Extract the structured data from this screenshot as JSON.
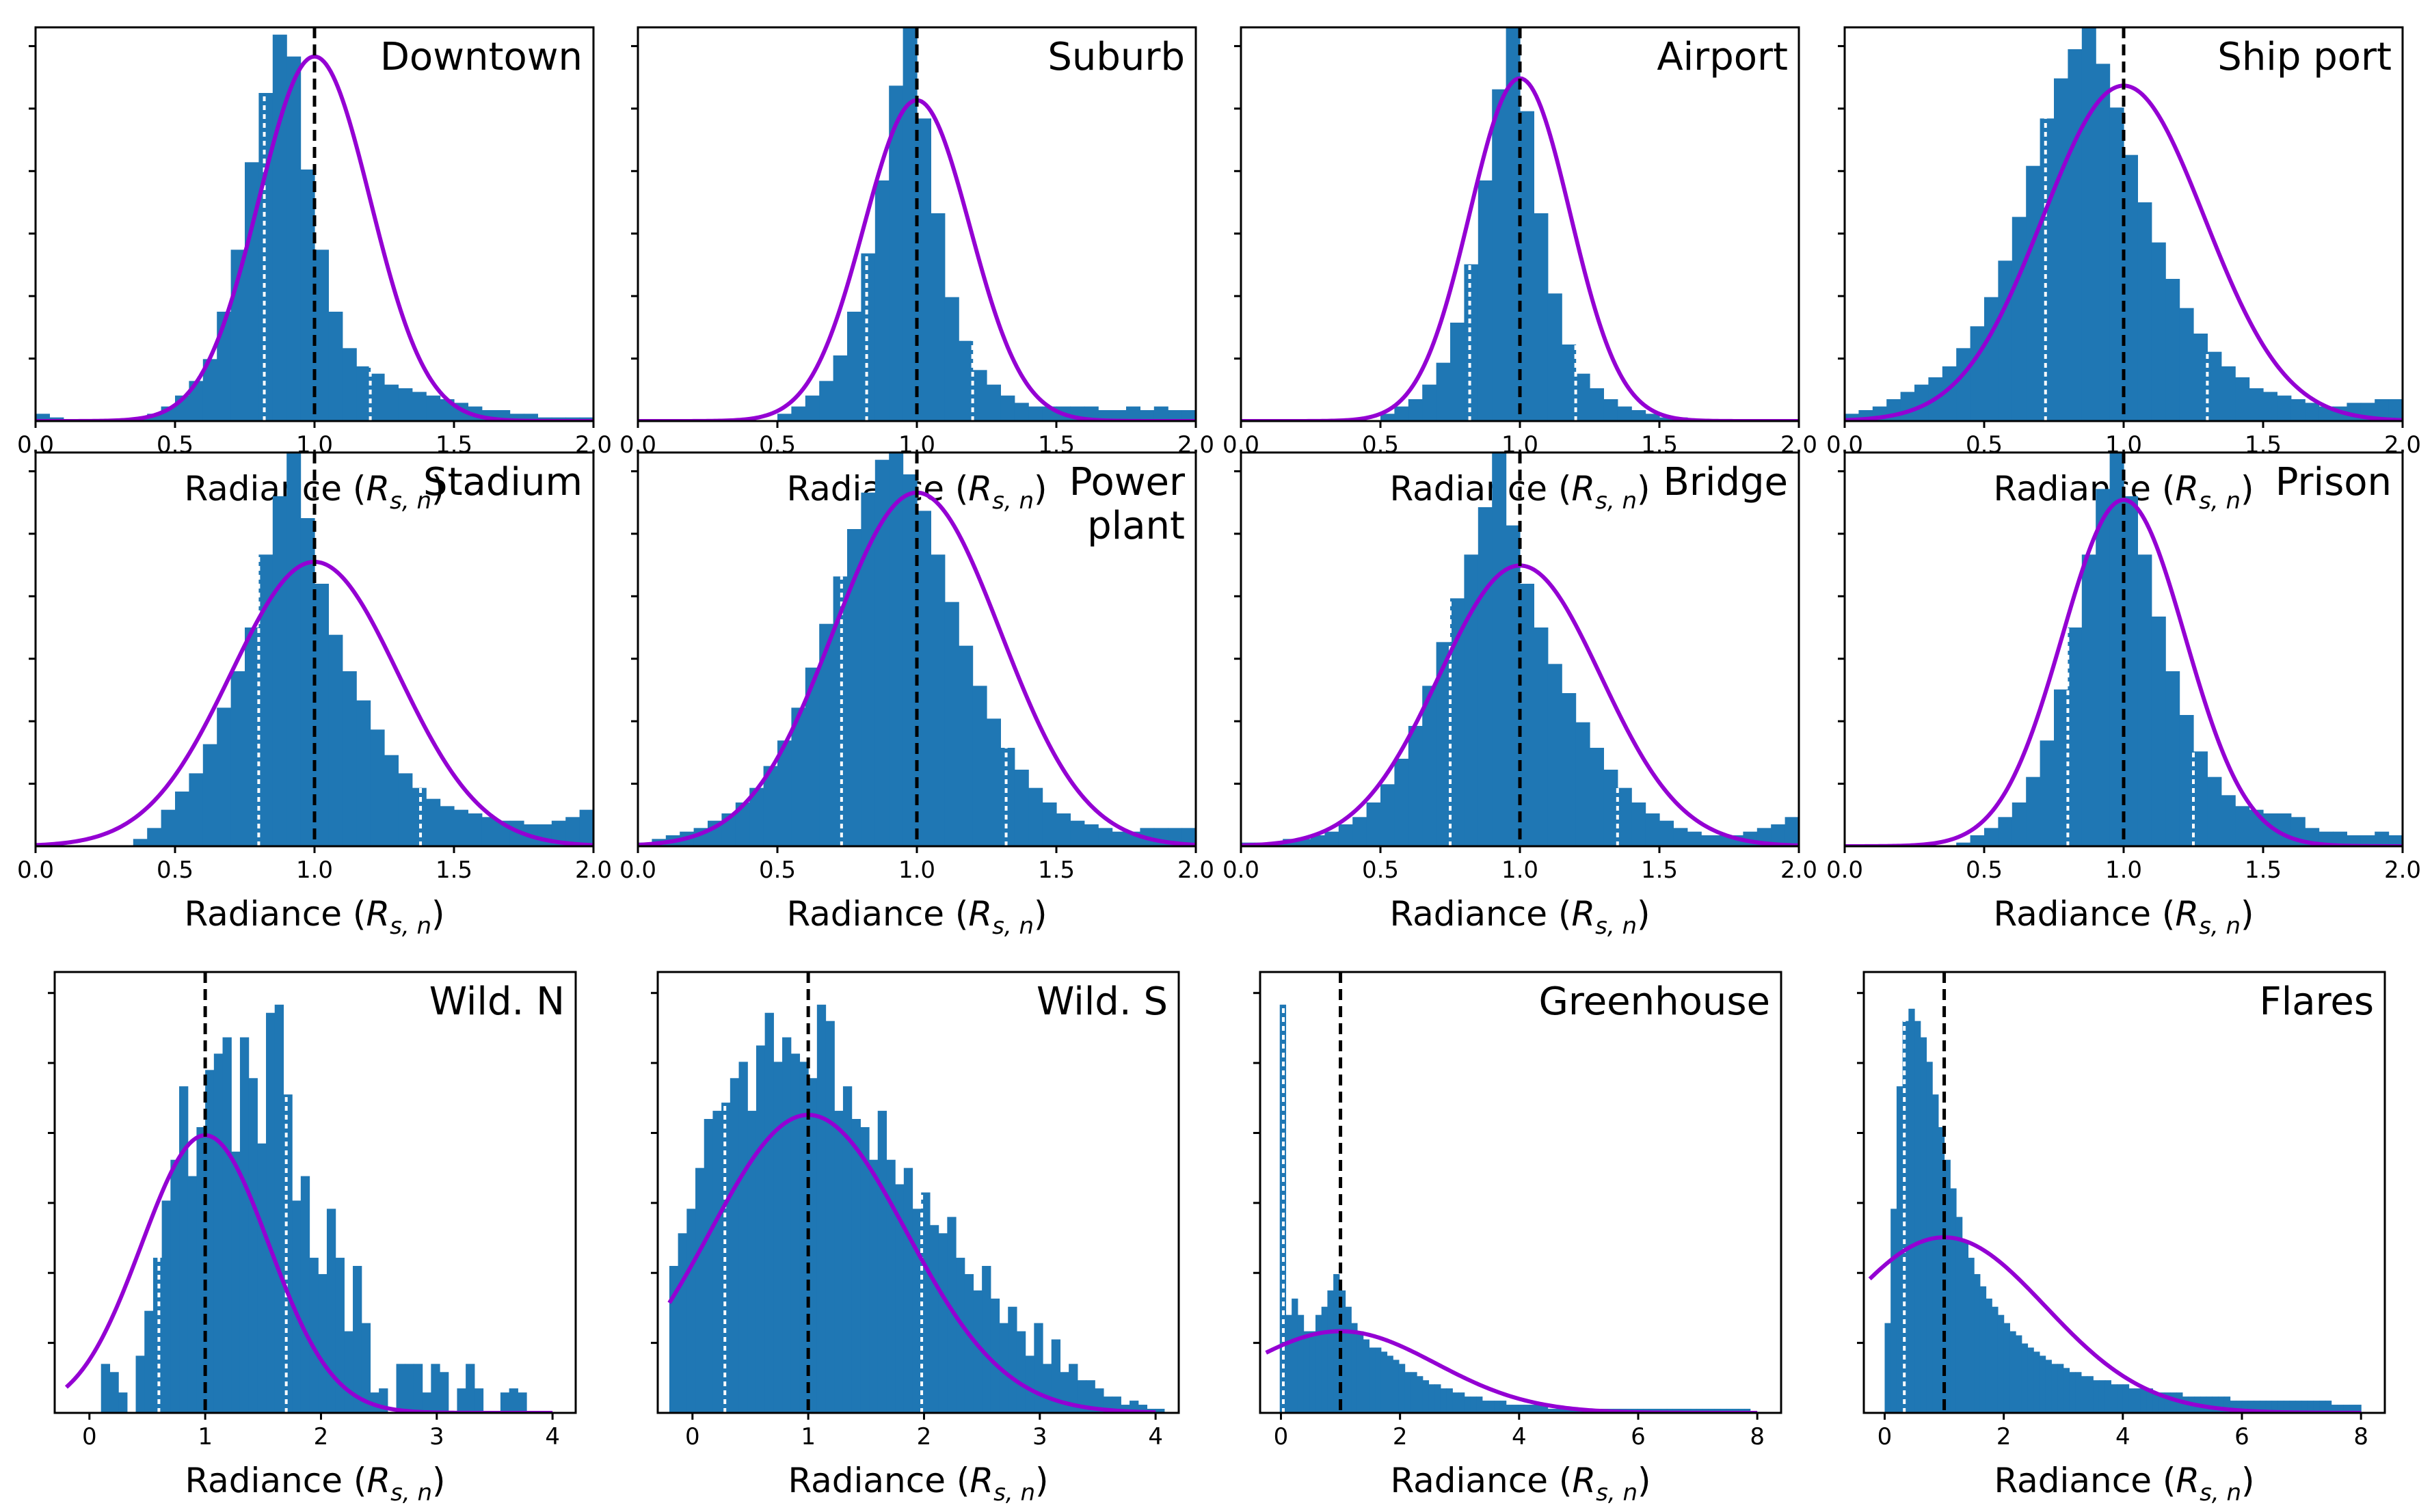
{
  "figure": {
    "x_axis_label": "Radiance (Rₛ,ₙ)",
    "x_axis_label_parts": {
      "main": "Radiance (",
      "symbol": "R",
      "subscript": "s, n",
      "close": ")"
    }
  },
  "colors": {
    "bars": "#1f77b4",
    "fit_curve": "#9400D3",
    "mean_line": "#000000",
    "percentile_lines": "#ffffff"
  },
  "chart_data": [
    {
      "type": "bar",
      "title": "Downtown",
      "xlim": [
        0,
        2
      ],
      "xticks": [
        "0.0",
        "0.5",
        "1.0",
        "1.5",
        "2.0"
      ],
      "show_x_tick_labels": true,
      "ylim": [
        0,
        1.08
      ],
      "bin_start": 0.0,
      "bin_width": 0.05,
      "values": [
        0.02,
        0.01,
        0.0,
        0.0,
        0.0,
        0.0,
        0.0,
        0.01,
        0.02,
        0.04,
        0.07,
        0.11,
        0.17,
        0.3,
        0.47,
        0.71,
        0.9,
        1.06,
        1.0,
        0.69,
        0.47,
        0.3,
        0.2,
        0.15,
        0.13,
        0.1,
        0.09,
        0.08,
        0.07,
        0.06,
        0.05,
        0.04,
        0.03,
        0.03,
        0.02,
        0.02,
        0.01,
        0.01,
        0.01,
        0.01
      ],
      "fit": {
        "mean": 1.0,
        "sigma": 0.2,
        "peak": 1.0
      },
      "mean_marker": 1.0,
      "percentile_markers": [
        0.82,
        1.2
      ]
    },
    {
      "type": "bar",
      "title": "Suburb",
      "xlim": [
        0,
        2
      ],
      "xticks": [
        "0.0",
        "0.5",
        "1.0",
        "1.5",
        "2.0"
      ],
      "show_x_tick_labels": true,
      "ylim": [
        0,
        1.08
      ],
      "bin_start": 0.0,
      "bin_width": 0.05,
      "values": [
        0.0,
        0.0,
        0.0,
        0.0,
        0.0,
        0.0,
        0.0,
        0.0,
        0.0,
        0.0,
        0.02,
        0.04,
        0.07,
        0.11,
        0.18,
        0.3,
        0.46,
        0.66,
        0.92,
        1.08,
        0.83,
        0.57,
        0.34,
        0.22,
        0.14,
        0.1,
        0.07,
        0.05,
        0.04,
        0.04,
        0.04,
        0.04,
        0.04,
        0.03,
        0.03,
        0.04,
        0.03,
        0.04,
        0.03,
        0.03
      ],
      "fit": {
        "mean": 1.0,
        "sigma": 0.19,
        "peak": 0.88
      },
      "mean_marker": 1.0,
      "percentile_markers": [
        0.82,
        1.2
      ]
    },
    {
      "type": "bar",
      "title": "Airport",
      "xlim": [
        0,
        2
      ],
      "xticks": [
        "0.0",
        "0.5",
        "1.0",
        "1.5",
        "2.0"
      ],
      "show_x_tick_labels": true,
      "ylim": [
        0,
        1.08
      ],
      "bin_start": 0.0,
      "bin_width": 0.05,
      "values": [
        0.0,
        0.0,
        0.0,
        0.0,
        0.0,
        0.0,
        0.0,
        0.0,
        0.0,
        0.0,
        0.02,
        0.04,
        0.06,
        0.1,
        0.16,
        0.27,
        0.43,
        0.66,
        0.91,
        1.08,
        0.85,
        0.57,
        0.35,
        0.21,
        0.13,
        0.09,
        0.06,
        0.04,
        0.03,
        0.02,
        0.01,
        0.01,
        0.0,
        0.0,
        0.0,
        0.0,
        0.0,
        0.0,
        0.0,
        0.0
      ],
      "fit": {
        "mean": 1.0,
        "sigma": 0.18,
        "peak": 0.94
      },
      "mean_marker": 1.0,
      "percentile_markers": [
        0.82,
        1.2
      ]
    },
    {
      "type": "bar",
      "title": "Ship port",
      "xlim": [
        0,
        2
      ],
      "xticks": [
        "0.0",
        "0.5",
        "1.0",
        "1.5",
        "2.0"
      ],
      "show_x_tick_labels": true,
      "ylim": [
        0,
        1.08
      ],
      "bin_start": 0.0,
      "bin_width": 0.05,
      "values": [
        0.02,
        0.03,
        0.04,
        0.06,
        0.08,
        0.1,
        0.12,
        0.15,
        0.2,
        0.26,
        0.34,
        0.44,
        0.56,
        0.7,
        0.83,
        0.94,
        1.02,
        1.08,
        0.98,
        0.86,
        0.73,
        0.6,
        0.49,
        0.39,
        0.31,
        0.24,
        0.19,
        0.15,
        0.12,
        0.09,
        0.08,
        0.07,
        0.06,
        0.05,
        0.04,
        0.04,
        0.05,
        0.05,
        0.06,
        0.06
      ],
      "fit": {
        "mean": 1.0,
        "sigma": 0.29,
        "peak": 0.92
      },
      "mean_marker": 1.0,
      "percentile_markers": [
        0.72,
        1.3
      ]
    },
    {
      "type": "bar",
      "title": "Stadium",
      "xlim": [
        0,
        2
      ],
      "xticks": [
        "0.0",
        "0.5",
        "1.0",
        "1.5",
        "2.0"
      ],
      "show_x_tick_labels": true,
      "ylim": [
        0,
        1.08
      ],
      "bin_start": 0.0,
      "bin_width": 0.05,
      "values": [
        0.0,
        0.0,
        0.0,
        0.0,
        0.0,
        0.0,
        0.0,
        0.02,
        0.05,
        0.1,
        0.15,
        0.2,
        0.28,
        0.38,
        0.48,
        0.6,
        0.8,
        0.96,
        1.08,
        0.9,
        0.72,
        0.58,
        0.48,
        0.4,
        0.32,
        0.25,
        0.2,
        0.16,
        0.13,
        0.11,
        0.1,
        0.09,
        0.08,
        0.07,
        0.07,
        0.06,
        0.06,
        0.07,
        0.08,
        0.1
      ],
      "fit": {
        "mean": 1.0,
        "sigma": 0.3,
        "peak": 0.78
      },
      "mean_marker": 1.0,
      "percentile_markers": [
        0.8,
        1.38
      ]
    },
    {
      "type": "bar",
      "title": "Power plant",
      "xlim": [
        0,
        2
      ],
      "xticks": [
        "0.0",
        "0.5",
        "1.0",
        "1.5",
        "2.0"
      ],
      "show_x_tick_labels": true,
      "ylim": [
        0,
        1.08
      ],
      "bin_start": 0.0,
      "bin_width": 0.05,
      "values": [
        0.01,
        0.02,
        0.03,
        0.04,
        0.05,
        0.07,
        0.09,
        0.12,
        0.16,
        0.22,
        0.29,
        0.38,
        0.49,
        0.61,
        0.74,
        0.87,
        0.97,
        1.06,
        1.08,
        1.02,
        0.92,
        0.8,
        0.67,
        0.55,
        0.44,
        0.35,
        0.27,
        0.21,
        0.16,
        0.12,
        0.09,
        0.07,
        0.06,
        0.05,
        0.04,
        0.04,
        0.05,
        0.05,
        0.05,
        0.05
      ],
      "fit": {
        "mean": 1.0,
        "sigma": 0.3,
        "peak": 0.97
      },
      "mean_marker": 1.0,
      "percentile_markers": [
        0.73,
        1.32
      ]
    },
    {
      "type": "bar",
      "title": "Bridge",
      "xlim": [
        0,
        2
      ],
      "xticks": [
        "0.0",
        "0.5",
        "1.0",
        "1.5",
        "2.0"
      ],
      "show_x_tick_labels": true,
      "ylim": [
        0,
        1.08
      ],
      "bin_start": 0.0,
      "bin_width": 0.05,
      "values": [
        0.01,
        0.01,
        0.01,
        0.02,
        0.02,
        0.03,
        0.04,
        0.06,
        0.08,
        0.12,
        0.17,
        0.24,
        0.33,
        0.44,
        0.56,
        0.68,
        0.8,
        0.93,
        1.08,
        0.88,
        0.72,
        0.6,
        0.5,
        0.42,
        0.34,
        0.27,
        0.21,
        0.16,
        0.12,
        0.09,
        0.07,
        0.05,
        0.04,
        0.03,
        0.03,
        0.03,
        0.04,
        0.05,
        0.06,
        0.08
      ],
      "fit": {
        "mean": 1.0,
        "sigma": 0.29,
        "peak": 0.77
      },
      "mean_marker": 1.0,
      "percentile_markers": [
        0.75,
        1.35
      ]
    },
    {
      "type": "bar",
      "title": "Prison",
      "xlim": [
        0,
        2
      ],
      "xticks": [
        "0.0",
        "0.5",
        "1.0",
        "1.5",
        "2.0"
      ],
      "show_x_tick_labels": true,
      "ylim": [
        0,
        1.08
      ],
      "bin_start": 0.0,
      "bin_width": 0.05,
      "values": [
        0.0,
        0.0,
        0.0,
        0.0,
        0.0,
        0.0,
        0.0,
        0.0,
        0.01,
        0.03,
        0.05,
        0.08,
        0.12,
        0.19,
        0.29,
        0.43,
        0.6,
        0.8,
        0.98,
        1.08,
        0.96,
        0.8,
        0.63,
        0.48,
        0.36,
        0.26,
        0.19,
        0.14,
        0.11,
        0.1,
        0.09,
        0.09,
        0.08,
        0.05,
        0.04,
        0.04,
        0.03,
        0.03,
        0.04,
        0.03
      ],
      "fit": {
        "mean": 1.0,
        "sigma": 0.22,
        "peak": 0.95
      },
      "mean_marker": 1.0,
      "percentile_markers": [
        0.8,
        1.25
      ]
    },
    {
      "type": "bar",
      "title": "Wild. N",
      "xlim": [
        -0.3,
        4.2
      ],
      "xticks": [
        "0",
        "1",
        "2",
        "3",
        "4"
      ],
      "xtick_values": [
        0,
        1,
        2,
        3,
        4
      ],
      "show_x_tick_labels": true,
      "ylim": [
        0,
        1.08
      ],
      "bin_start": 0.1,
      "bin_width": 0.075,
      "values": [
        0.12,
        0.1,
        0.05,
        0.0,
        0.14,
        0.25,
        0.38,
        0.52,
        0.62,
        0.8,
        0.58,
        0.7,
        0.84,
        0.88,
        0.92,
        0.64,
        0.92,
        0.82,
        0.66,
        0.98,
        1.0,
        0.78,
        0.52,
        0.58,
        0.38,
        0.34,
        0.5,
        0.38,
        0.2,
        0.36,
        0.22,
        0.05,
        0.06,
        0.0,
        0.12,
        0.12,
        0.12,
        0.05,
        0.12,
        0.1,
        0.0,
        0.06,
        0.12,
        0.06,
        0.0,
        0.0,
        0.05,
        0.06,
        0.05,
        0.0,
        0.0,
        0.0,
        0.0,
        0.0,
        0.0,
        0.05,
        0.12,
        0.06,
        0.0,
        0.0,
        0.0,
        0.0,
        0.0,
        0.06,
        0.06,
        0.0,
        0.06,
        0.0,
        0.0,
        0.06
      ],
      "fit": {
        "mean": 1.0,
        "sigma": 0.55,
        "peak": 0.68
      },
      "fit_range": [
        -0.2,
        4.0
      ],
      "mean_marker": 1.0,
      "percentile_markers": [
        0.6,
        1.7
      ]
    },
    {
      "type": "bar",
      "title": "Wild. S",
      "xlim": [
        -0.3,
        4.2
      ],
      "xticks": [
        "0",
        "1",
        "2",
        "3",
        "4"
      ],
      "xtick_values": [
        0,
        1,
        2,
        3,
        4
      ],
      "show_x_tick_labels": true,
      "ylim": [
        0,
        1.08
      ],
      "bin_start": -0.2,
      "bin_width": 0.075,
      "values": [
        0.36,
        0.44,
        0.5,
        0.6,
        0.72,
        0.74,
        0.76,
        0.82,
        0.86,
        0.74,
        0.9,
        0.98,
        0.86,
        0.92,
        0.88,
        0.86,
        0.82,
        1.0,
        0.96,
        0.74,
        0.8,
        0.72,
        0.7,
        0.62,
        0.74,
        0.62,
        0.56,
        0.6,
        0.5,
        0.54,
        0.46,
        0.44,
        0.48,
        0.38,
        0.34,
        0.3,
        0.36,
        0.28,
        0.22,
        0.26,
        0.2,
        0.14,
        0.22,
        0.12,
        0.18,
        0.1,
        0.12,
        0.08,
        0.08,
        0.06,
        0.04,
        0.04,
        0.02,
        0.03,
        0.02,
        0.01,
        0.01,
        0.0
      ],
      "fit": {
        "mean": 1.0,
        "sigma": 0.85,
        "peak": 0.73
      },
      "fit_range": [
        -0.2,
        4.0
      ],
      "mean_marker": 1.0,
      "percentile_markers": [
        0.28,
        1.98
      ]
    },
    {
      "type": "bar",
      "title": "Greenhouse",
      "xlim": [
        -0.35,
        8.4
      ],
      "xticks": [
        "0",
        "2",
        "4",
        "6",
        "8"
      ],
      "xtick_values": [
        0,
        2,
        4,
        6,
        8
      ],
      "show_x_tick_labels": true,
      "ylim": [
        0,
        1.08
      ],
      "bin_start": -0.02,
      "bin_width": 0.1,
      "values": [
        1.0,
        0.24,
        0.28,
        0.24,
        0.2,
        0.2,
        0.24,
        0.26,
        0.3,
        0.34,
        0.3,
        0.26,
        0.22,
        0.2,
        0.18,
        0.16,
        0.16,
        0.15,
        0.14,
        0.13,
        0.12,
        0.1,
        0.1,
        0.09,
        0.08,
        0.07,
        0.07,
        0.06,
        0.06,
        0.05,
        0.05,
        0.04,
        0.04,
        0.04,
        0.03,
        0.03,
        0.03,
        0.03,
        0.02,
        0.02,
        0.02,
        0.02,
        0.02,
        0.02,
        0.02,
        0.01,
        0.01,
        0.01,
        0.01,
        0.01,
        0.01,
        0.01,
        0.01,
        0.01,
        0.01,
        0.01,
        0.01,
        0.01,
        0.01,
        0.01,
        0.01,
        0.01,
        0.01,
        0.01,
        0.01,
        0.01,
        0.01,
        0.01,
        0.01,
        0.01,
        0.01,
        0.01,
        0.01,
        0.01,
        0.01,
        0.01,
        0.01,
        0.01,
        0.01,
        0.0
      ],
      "fit": {
        "mean": 1.0,
        "sigma": 1.6,
        "peak": 0.2
      },
      "fit_range": [
        -0.25,
        8.0
      ],
      "mean_marker": 1.0,
      "percentile_markers": [
        0.04
      ]
    },
    {
      "type": "bar",
      "title": "Flares",
      "xlim": [
        -0.35,
        8.4
      ],
      "xticks": [
        "0",
        "2",
        "4",
        "6",
        "8"
      ],
      "xtick_values": [
        0,
        2,
        4,
        6,
        8
      ],
      "show_x_tick_labels": true,
      "ylim": [
        0,
        1.08
      ],
      "bin_start": 0.0,
      "bin_width": 0.1,
      "values": [
        0.22,
        0.5,
        0.8,
        0.96,
        0.99,
        0.96,
        0.92,
        0.86,
        0.78,
        0.7,
        0.62,
        0.55,
        0.48,
        0.42,
        0.38,
        0.34,
        0.31,
        0.28,
        0.26,
        0.24,
        0.22,
        0.2,
        0.19,
        0.17,
        0.16,
        0.15,
        0.14,
        0.13,
        0.12,
        0.12,
        0.11,
        0.1,
        0.1,
        0.09,
        0.09,
        0.08,
        0.08,
        0.08,
        0.07,
        0.07,
        0.07,
        0.06,
        0.06,
        0.06,
        0.06,
        0.05,
        0.05,
        0.05,
        0.05,
        0.05,
        0.04,
        0.04,
        0.04,
        0.04,
        0.04,
        0.04,
        0.04,
        0.04,
        0.03,
        0.03,
        0.03,
        0.03,
        0.03,
        0.03,
        0.03,
        0.03,
        0.03,
        0.03,
        0.03,
        0.03,
        0.03,
        0.03,
        0.03,
        0.03,
        0.03,
        0.02,
        0.02,
        0.02,
        0.02,
        0.02
      ],
      "fit": {
        "mean": 1.0,
        "sigma": 1.7,
        "peak": 0.43
      },
      "fit_range": [
        -0.25,
        8.0
      ],
      "mean_marker": 1.0,
      "percentile_markers": [
        0.33
      ]
    }
  ]
}
